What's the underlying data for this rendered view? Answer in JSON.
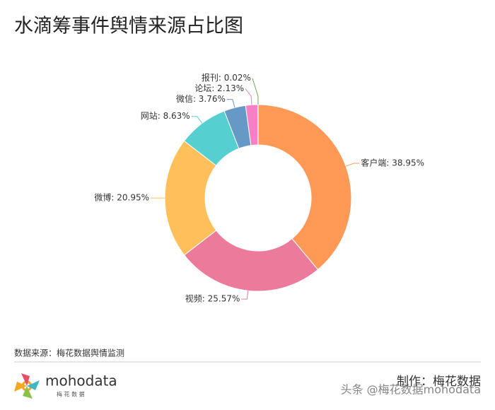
{
  "chart_data": {
    "type": "pie",
    "title": "水滴筹事件舆情来源占比图",
    "categories": [
      "客户端",
      "视频",
      "微博",
      "网站",
      "微信",
      "论坛",
      "报刊"
    ],
    "values": [
      38.95,
      25.57,
      20.95,
      8.63,
      3.76,
      2.13,
      0.02
    ],
    "value_labels": [
      "客户端: 38.95%",
      "视频: 25.57%",
      "微博: 20.95%",
      "网站: 8.63%",
      "微信: 3.76%",
      "论坛: 2.13%",
      "报刊: 0.02%"
    ],
    "colors": [
      "#ff9955",
      "#ec7a9a",
      "#ffbf5a",
      "#56cfd1",
      "#6699c6",
      "#f77fc6",
      "#7ba05b"
    ],
    "donut": true
  },
  "source": "数据来源：梅花数据舆情监测",
  "brand": "mohodata",
  "brand_sub": "梅 花 数 据",
  "credit": "制作：梅花数据",
  "watermark": "头条 @梅花数据mohodata"
}
